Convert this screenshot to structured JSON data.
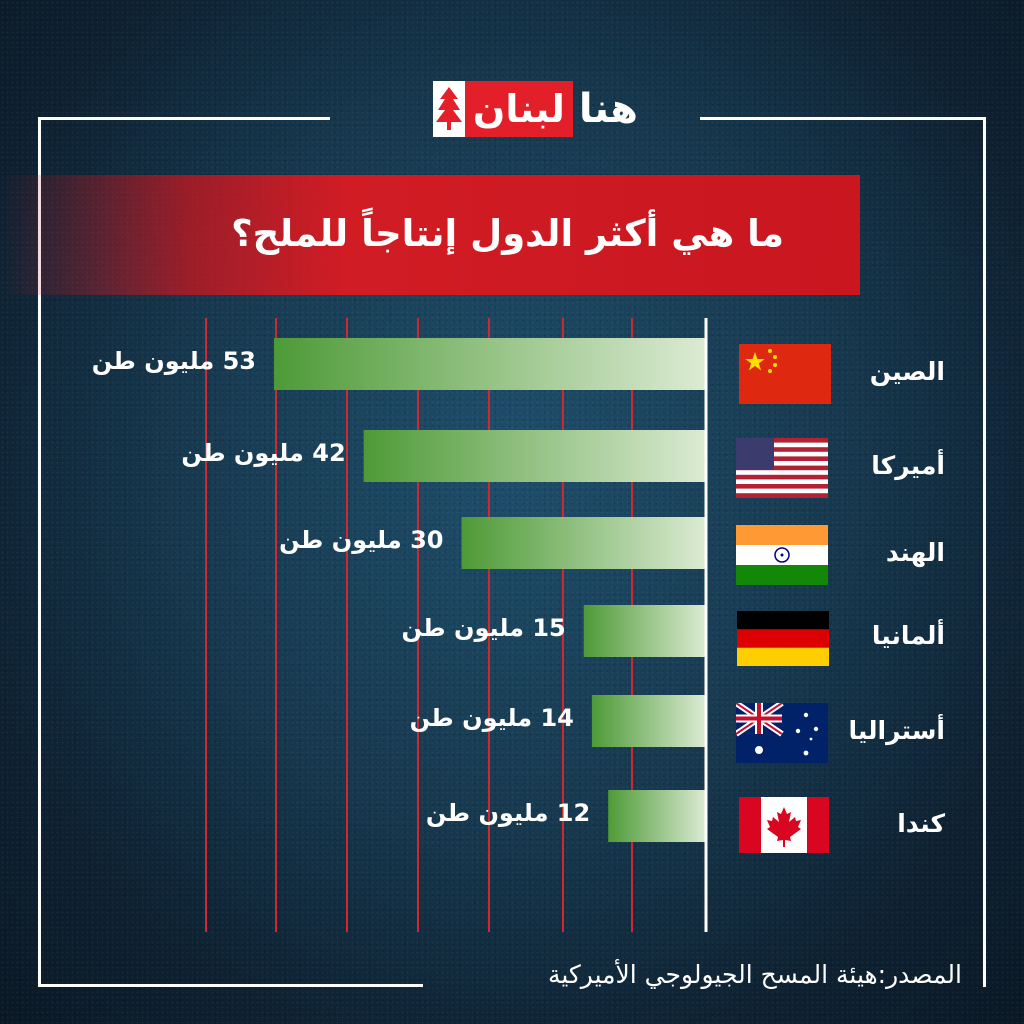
{
  "logo": {
    "part_white": "هنا",
    "part_red": "لبنان"
  },
  "title": "ما هي أكثر الدول إنتاجاً للملح؟",
  "source": "المصدر:هيئة المسح الجيولوجي الأميركية",
  "colors": {
    "accent_red": "#d11c24",
    "bar_green_dark": "#4e9a37",
    "bar_green_light": "#dcebd3"
  },
  "chart_data": {
    "type": "bar",
    "orientation": "horizontal",
    "title": "ما هي أكثر الدول إنتاجاً للملح؟",
    "categories": [
      "الصين",
      "أميركا",
      "الهند",
      "ألمانيا",
      "أستراليا",
      "كندا"
    ],
    "values": [
      53,
      42,
      30,
      15,
      14,
      12
    ],
    "value_labels": [
      "53 مليون طن",
      "42  مليون طن",
      "30 مليون طن",
      "15 مليون طن",
      "14 مليون طن",
      "12 مليون طن"
    ],
    "flags": [
      "china-flag",
      "usa-flag",
      "india-flag",
      "germany-flag",
      "australia-flag",
      "canada-flag"
    ],
    "unit": "مليون طن",
    "grid": true
  }
}
